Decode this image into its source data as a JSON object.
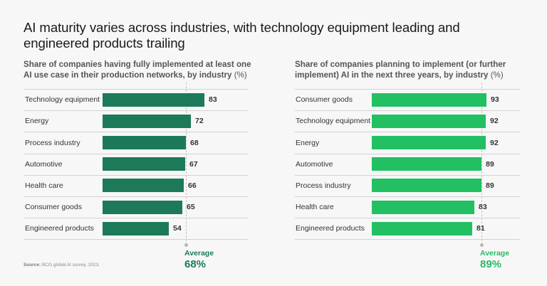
{
  "title": {
    "line1": "AI maturity varies across industries, with technology equipment leading and",
    "line2": "engineered products trailing"
  },
  "source": {
    "label": "Source:",
    "text": "BCG global AI survey, 2023."
  },
  "colors": {
    "background": "#f7f7f7",
    "left_bar": "#1c7a58",
    "right_bar": "#22c063",
    "left_accent": "#1c7a58",
    "right_accent": "#2ab865"
  },
  "chart_data": [
    {
      "type": "bar",
      "orientation": "horizontal",
      "title": "Share of companies having fully implemented at least one AI use case in their production networks, by industry (%)",
      "title_lines": [
        "Share of companies having fully implemented at least one",
        "AI use case in their production networks, by industry"
      ],
      "unit_suffix": "(%)",
      "categories": [
        "Technology equipment",
        "Energy",
        "Process industry",
        "Automotive",
        "Health care",
        "Consumer goods",
        "Engineered products"
      ],
      "values": [
        83,
        72,
        68,
        67,
        66,
        65,
        54
      ],
      "average": {
        "label": "Average",
        "value": 68,
        "display": "68%"
      },
      "xlim": [
        0,
        100
      ],
      "grid": false,
      "color": "#1c7a58"
    },
    {
      "type": "bar",
      "orientation": "horizontal",
      "title": "Share of companies planning to implement (or further implement) AI in the next three years, by industry (%)",
      "title_lines": [
        "Share of companies planning to implement (or further",
        "implement) AI in the next three years, by industry"
      ],
      "unit_suffix": "(%)",
      "categories": [
        "Consumer goods",
        "Technology equipment",
        "Energy",
        "Automotive",
        "Process industry",
        "Health care",
        "Engineered products"
      ],
      "values": [
        93,
        92,
        92,
        89,
        89,
        83,
        81
      ],
      "average": {
        "label": "Average",
        "value": 89,
        "display": "89%"
      },
      "xlim": [
        0,
        100
      ],
      "grid": false,
      "color": "#22c063"
    }
  ]
}
